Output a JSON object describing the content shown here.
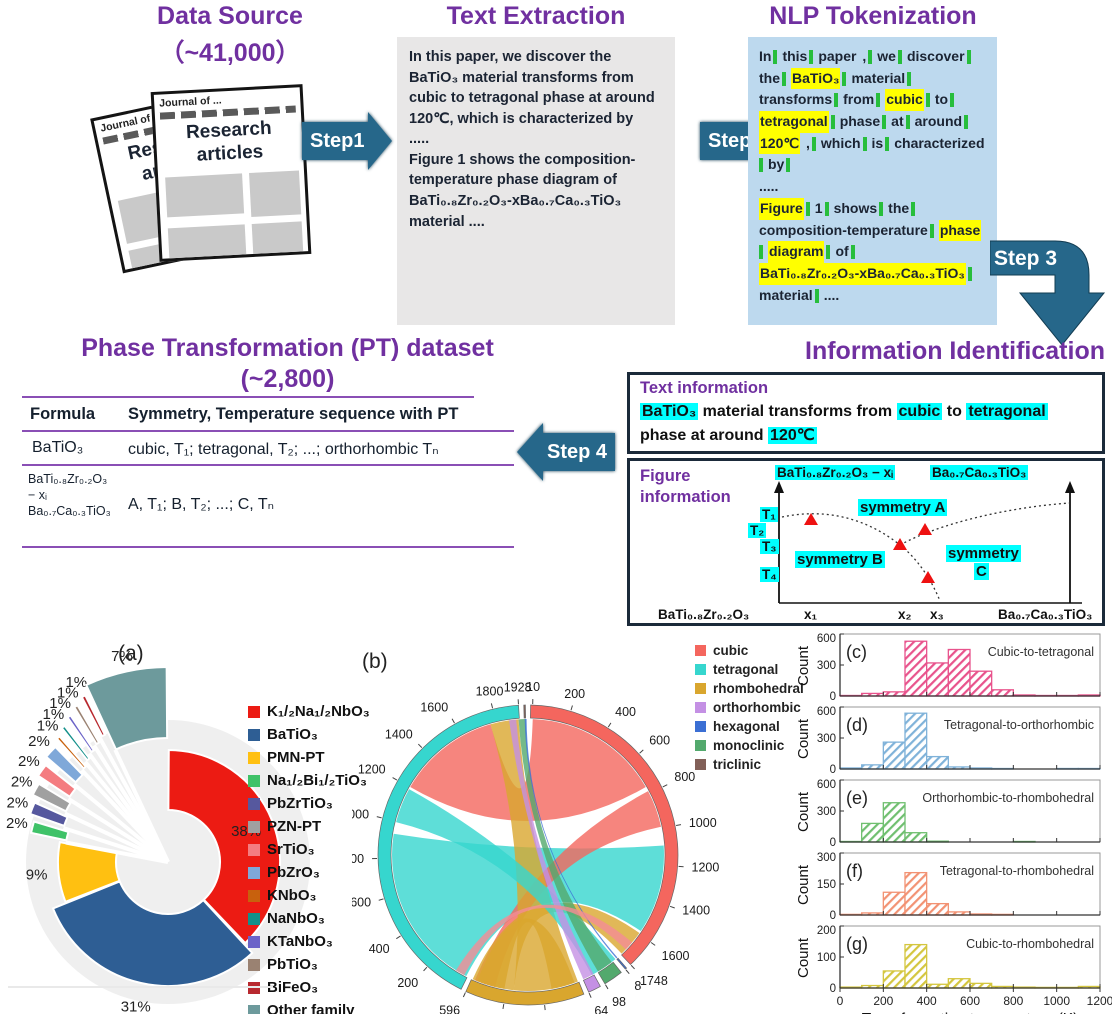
{
  "colors": {
    "purple": "#7030A0",
    "arrow": "#26678A",
    "panel_gray": "#E8E7E7",
    "panel_blue": "#BDD9EE",
    "yellow_hl": "#FFFF00",
    "green_tick": "#27BE3C",
    "cyan_hl": "#00FFFF"
  },
  "data_source": {
    "title": "Data Source",
    "subtitle": "（~41,000）",
    "journal_header": "Journal of ...",
    "journal_title": "Research articles"
  },
  "steps": {
    "s1": "Step1",
    "s2": "Step2",
    "s3": "Step 3",
    "s4": "Step 4"
  },
  "text_extraction": {
    "title": "Text Extraction",
    "body": "In this paper, we discover the BaTiO₃ material transforms from cubic to tetragonal phase at around 120℃, which is characterized by\n.....\nFigure 1 shows the composition-temperature phase diagram of BaTi₀.₈Zr₀.₂O₃-xBa₀.₇Ca₀.₃TiO₃ material ...."
  },
  "nlp_tokenization": {
    "title": "NLP Tokenization",
    "tokens": [
      {
        "t": "In"
      },
      {
        "t": "this"
      },
      {
        "t": "paper",
        "tick": false
      },
      {
        "t": ","
      },
      {
        "t": "we"
      },
      {
        "t": "discover"
      },
      {
        "t": "the"
      },
      {
        "t": "BaTiO₃",
        "hl": true
      },
      {
        "t": "material"
      },
      {
        "t": "transforms"
      },
      {
        "t": "from"
      },
      {
        "t": "cubic",
        "hl": true
      },
      {
        "t": "to"
      },
      {
        "t": "tetragonal",
        "hl": true
      },
      {
        "t": "phase"
      },
      {
        "t": "at"
      },
      {
        "t": "around"
      },
      {
        "t": "120℃",
        "hl": true,
        "tick": false
      },
      {
        "t": ","
      },
      {
        "t": "which"
      },
      {
        "t": "is"
      },
      {
        "t": "characterized"
      },
      {
        "t": "by"
      },
      {
        "br": true
      },
      {
        "t": ".....",
        "tick": false
      },
      {
        "br": true
      },
      {
        "t": "Figure",
        "hl": true
      },
      {
        "t": "1"
      },
      {
        "t": "shows"
      },
      {
        "t": "the"
      },
      {
        "t": "composition-temperature"
      },
      {
        "t": "phase",
        "hl": true
      },
      {
        "t": "diagram",
        "hl": true
      },
      {
        "t": "of"
      },
      {
        "t": "BaTi₀.₈Zr₀.₂O₃-xBa₀.₇Ca₀.₃TiO₃",
        "hl": true
      },
      {
        "t": "material"
      },
      {
        "t": "....",
        "tick": false
      }
    ]
  },
  "pt_dataset": {
    "title": "Phase Transformation (PT) dataset",
    "subtitle": "(~2,800)",
    "header": [
      "Formula",
      "Symmetry, Temperature sequence with PT"
    ],
    "row1": {
      "formula": "BaTiO₃",
      "sequence": "cubic, T₁; tetragonal, T₂; ...; orthorhombic Tₙ"
    },
    "row2": {
      "formula_lines": [
        "BaTi₀.₈Zr₀.₂O₃",
        "− xᵢ",
        "Ba₀.₇Ca₀.₃TiO₃"
      ],
      "sequence": "A, T₁; B, T₂; ...; C, Tₙ"
    }
  },
  "info_identification": {
    "title": "Information Identification",
    "text_info_label": "Text information",
    "text_segments": [
      {
        "t": "BaTiO₃",
        "hl": true
      },
      {
        "t": " material transforms from "
      },
      {
        "t": "cubic",
        "hl": true
      },
      {
        "t": " to "
      },
      {
        "t": "tetragonal",
        "hl": true
      },
      {
        "t": " phase at around "
      },
      {
        "t": "120℃",
        "hl": true
      }
    ],
    "figure_info_label_line1": "Figure",
    "figure_info_label_line2": "information",
    "figure": {
      "title_left": "BaTi₀.₈Zr₀.₂O₃ − xᵢ",
      "title_right": "Ba₀.₇Ca₀.₃TiO₃",
      "y_labels": [
        "T₁",
        "T₂",
        "T₃",
        "T₄"
      ],
      "sym_a": "symmetry A",
      "sym_b": "symmetry B",
      "sym_c1": "symmetry",
      "sym_c2": "C",
      "x_labels": [
        "BaTi₀.₈Zr₀.₂O₃",
        "x₁",
        "x₂",
        "x₃",
        "Ba₀.₇Ca₀.₃TiO₃"
      ]
    }
  },
  "chart_data": [
    {
      "id": "a",
      "type": "pie",
      "panel_label": "(a)",
      "legend_position": "right",
      "unit": "%",
      "labels": [
        "K₁/₂Na₁/₂NbO₃",
        "BaTiO₃",
        "PMN-PT",
        "Na₁/₂Bi₁/₂TiO₃",
        "PbZrTiO₃",
        "PZN-PT",
        "SrTiO₃",
        "PbZrO₃",
        "KNbO₃",
        "NaNbO₃",
        "KTaNbO₃",
        "PbTiO₃",
        "BiFeO₃",
        "Other family"
      ],
      "values": [
        38,
        31,
        9,
        2,
        2,
        2,
        2,
        2,
        1,
        1,
        1,
        1,
        1,
        7
      ],
      "colors": [
        "#EC1B13",
        "#2E5E94",
        "#FFC011",
        "#3FC268",
        "#56589E",
        "#A0A0A0",
        "#F47C80",
        "#7FA8D9",
        "#C8610D",
        "#13908A",
        "#6B63C8",
        "#9A8272",
        "#B8292F",
        "#6D9A9C"
      ]
    },
    {
      "id": "b",
      "type": "chord",
      "panel_label": "(b)",
      "legend_position": "right",
      "segments": [
        {
          "name": "cubic",
          "total": 1748,
          "color": "#F4665E",
          "ticks": [
            200,
            400,
            600,
            800,
            1000,
            1200,
            1400,
            1600
          ],
          "start_label": "10",
          "end_label": "1748"
        },
        {
          "name": "hexagonal",
          "total": 8,
          "color": "#3B6FD4",
          "ticks": [],
          "end_label": "8"
        },
        {
          "name": "monoclinic",
          "total": 98,
          "color": "#53A96D",
          "ticks": [],
          "end_label": "98"
        },
        {
          "name": "orthorhombic",
          "total": 64,
          "color": "#C490E4",
          "ticks": [],
          "end_label": "64"
        },
        {
          "name": "rhombohedral",
          "total": 596,
          "color": "#D9A62E",
          "ticks": [
            200,
            400
          ],
          "end_label": "596"
        },
        {
          "name": "tetragonal",
          "total": 1928,
          "color": "#36D6CE",
          "ticks": [
            200,
            400,
            600,
            800,
            1000,
            1200,
            1400,
            1600,
            1800
          ],
          "end_label": "1928"
        },
        {
          "name": "triclinic",
          "total": 8,
          "color": "#826058",
          "ticks": []
        }
      ],
      "legend": [
        "cubic",
        "tetragonal",
        "rhombohedral",
        "orthorhombic",
        "hexagonal",
        "monoclinic",
        "triclinic"
      ],
      "legend_colors": [
        "#F4665E",
        "#36D6CE",
        "#D9A62E",
        "#C490E4",
        "#3B6FD4",
        "#53A96D",
        "#826058"
      ],
      "ribbons": [
        {
          "from": [
            207,
            279
          ],
          "to": [
            86,
            124
          ],
          "color": "#36D6CE"
        },
        {
          "from": [
            2,
            60
          ],
          "to": [
            300,
            344
          ],
          "color": "#F4665E"
        },
        {
          "from": [
            62,
            78
          ],
          "to": [
            194,
            203
          ],
          "color": "#F4665E"
        },
        {
          "from": [
            344,
            356
          ],
          "to": [
            158.5,
            186
          ],
          "color": "#D9A62E"
        },
        {
          "from": [
            186,
            204
          ],
          "to": [
            125,
            136.5
          ],
          "color": "#D9A62E"
        },
        {
          "from": [
            160,
            170
          ],
          "to": [
            190,
            202
          ],
          "color": "#D9A62E"
        },
        {
          "from": [
            284,
            299
          ],
          "to": [
            140,
            152
          ],
          "color": "#36D6CE"
        },
        {
          "from": [
            151.2,
            156
          ],
          "to": [
            352,
            355
          ],
          "color": "#C490E4"
        },
        {
          "from": [
            142,
            149
          ],
          "to": [
            356,
            359
          ],
          "color": "#53A96D"
        },
        {
          "from": [
            138.9,
            139.5
          ],
          "to": [
            358.6,
            359.4
          ],
          "color": "#3B6FD4"
        },
        {
          "from": [
            130,
            134
          ],
          "to": [
            208,
            212
          ],
          "color": "#F48C96"
        }
      ]
    },
    {
      "type": "histogram-group",
      "xlabel": "Transformation temperature (K)",
      "ylabel": "Count",
      "xticks": [
        0,
        200,
        400,
        600,
        800,
        1000,
        1200
      ],
      "x_range": [
        0,
        1200
      ],
      "bin_width": 100,
      "panels": [
        {
          "id": "c",
          "label": "(c)",
          "annotation": "Cubic-to-tetragonal",
          "color": "#E8538C",
          "ymax": 600,
          "yticks": [
            0,
            300,
            600
          ],
          "values": [
            5,
            25,
            40,
            530,
            320,
            450,
            240,
            60,
            10,
            5,
            5,
            10
          ]
        },
        {
          "id": "d",
          "label": "(d)",
          "annotation": "Tetragonal-to-orthorhombic",
          "color": "#7FB2D9",
          "ymax": 600,
          "yticks": [
            0,
            300,
            600
          ],
          "values": [
            10,
            40,
            260,
            540,
            120,
            20,
            10,
            5,
            3,
            3,
            5,
            5
          ]
        },
        {
          "id": "e",
          "label": "(e)",
          "annotation": "Orthorhombic-to-rhombohedral",
          "color": "#6FBF6F",
          "ymax": 600,
          "yticks": [
            0,
            300,
            600
          ],
          "values": [
            5,
            180,
            380,
            90,
            8,
            3,
            3,
            3,
            5,
            3,
            3,
            3
          ]
        },
        {
          "id": "f",
          "label": "(f)",
          "annotation": "Tetragonal-to-rhombohedral",
          "color": "#F29273",
          "ymax": 300,
          "yticks": [
            0,
            150,
            300
          ],
          "values": [
            3,
            10,
            110,
            205,
            55,
            15,
            5,
            3,
            2,
            2,
            2,
            2
          ]
        },
        {
          "id": "g",
          "label": "(g)",
          "annotation": "Cubic-to-rhombohedral",
          "color": "#D4C63F",
          "ymax": 200,
          "yticks": [
            0,
            100,
            200
          ],
          "values": [
            3,
            8,
            55,
            140,
            12,
            30,
            15,
            5,
            3,
            2,
            2,
            5
          ]
        }
      ]
    }
  ]
}
